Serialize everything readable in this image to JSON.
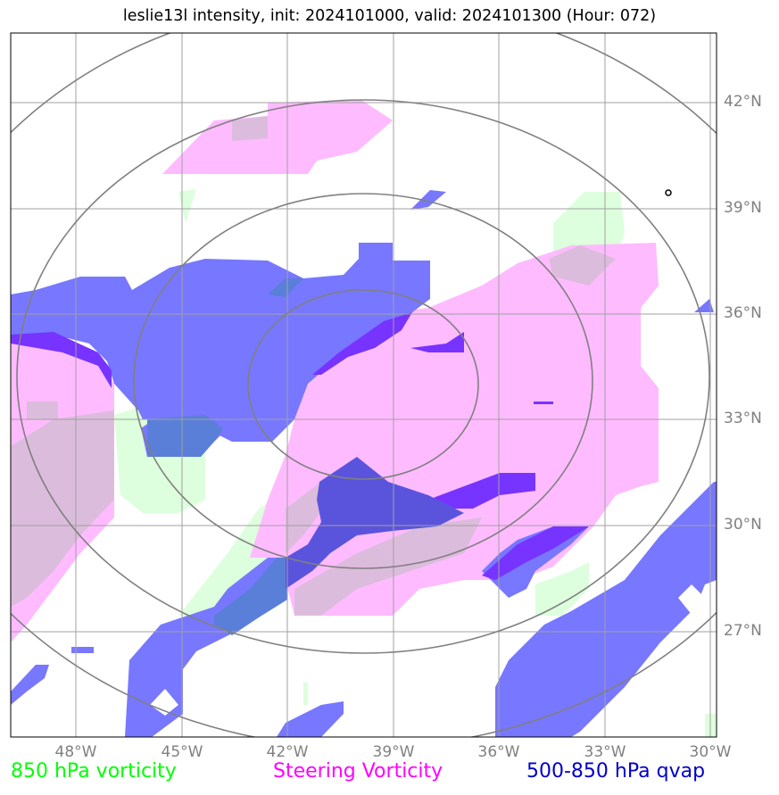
{
  "title": "leslie13l intensity, init: 2024101000, valid: 2024101300 (Hour: 072)",
  "lat_labels": [
    "42°N",
    "39°N",
    "36°N",
    "33°N",
    "30°N",
    "27°N"
  ],
  "lon_labels": [
    "48°W",
    "45°W",
    "42°W",
    "39°W",
    "36°W",
    "33°W",
    "30°W"
  ],
  "legend": {
    "vorticity_850": {
      "label": "850 hPa vorticity",
      "color": "#00ff00"
    },
    "steering": {
      "label": "Steering Vorticity",
      "color": "#ff00ff"
    },
    "qvap": {
      "label": "500-850 hPa qvap",
      "color": "#0000cc"
    }
  },
  "fill_colors": {
    "vorticity_850": "#ddffdd",
    "steering": "#ffbbff",
    "qvap": "#7777ff",
    "qvap_dark": "#7733ff",
    "overlap": "#5a54dd"
  },
  "gridline_color": "#a0a0a0",
  "ring_color": "#808080"
}
